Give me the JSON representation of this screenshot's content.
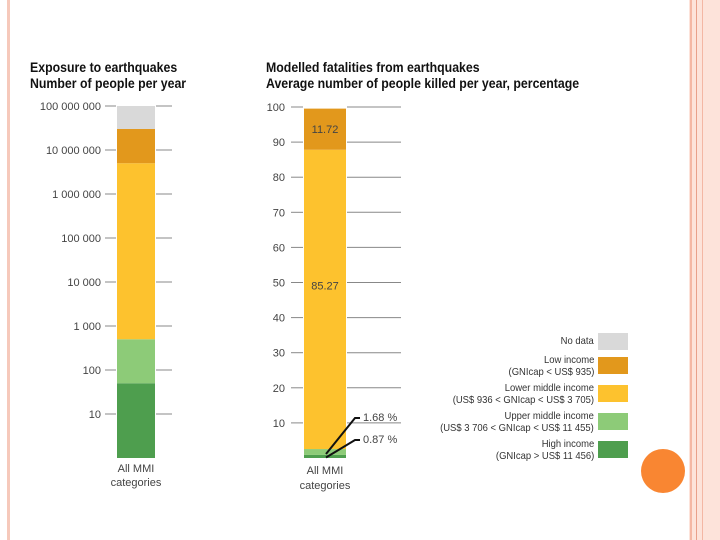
{
  "colors": {
    "no_data": "#d9d9d9",
    "low": "#e2981c",
    "lower_middle": "#fdc22e",
    "upper_middle": "#8dcb78",
    "high": "#4e9e4e",
    "accent_circle": "#f98632",
    "border": "#f6c9bb"
  },
  "chart_data": [
    {
      "type": "bar",
      "stacked": true,
      "title": "Exposure to earthquakes",
      "subtitle": "Number of people per year",
      "yscale": "log",
      "ylim": [
        1,
        100000000
      ],
      "yticks": [
        100000000,
        10000000,
        1000000,
        100000,
        10000,
        1000,
        100,
        10
      ],
      "ytick_labels": [
        "100 000 000",
        "10 000 000",
        "1 000 000",
        "100 000",
        "10 000",
        "1 000",
        "100",
        "10"
      ],
      "categories": [
        "All MMI categories"
      ],
      "category_lines": [
        "All MMI",
        "categories"
      ],
      "series": [
        {
          "name": "High income",
          "top": 50
        },
        {
          "name": "Upper middle income",
          "top": 500
        },
        {
          "name": "Lower middle income",
          "top": 5000000
        },
        {
          "name": "Low income",
          "top": 30000000
        },
        {
          "name": "No data",
          "top": 100000000
        }
      ]
    },
    {
      "type": "bar",
      "stacked": true,
      "title": "Modelled fatalities from earthquakes",
      "subtitle": "Average number of people killed per year, percentage",
      "ylim": [
        0,
        100
      ],
      "yticks": [
        100,
        90,
        80,
        70,
        60,
        50,
        40,
        30,
        20,
        10
      ],
      "ytick_labels": [
        "100",
        "90",
        "80",
        "70",
        "60",
        "50",
        "40",
        "30",
        "20",
        "10"
      ],
      "categories": [
        "All MMI categories"
      ],
      "category_lines": [
        "All MMI",
        "categories"
      ],
      "series": [
        {
          "name": "High income",
          "value": 0.87,
          "label": "0.87 %"
        },
        {
          "name": "Upper middle income",
          "value": 1.68,
          "label": "1.68 %"
        },
        {
          "name": "Lower middle income",
          "value": 85.27,
          "label": "85.27"
        },
        {
          "name": "Low income",
          "value": 11.72,
          "label": "11.72"
        },
        {
          "name": "No data",
          "value": 0.46
        }
      ]
    }
  ],
  "legend": [
    {
      "key": "no_data",
      "line1": "No data",
      "line2": ""
    },
    {
      "key": "low",
      "line1": "Low income",
      "line2": "(GNIcap < US$ 935)"
    },
    {
      "key": "lower_middle",
      "line1": "Lower middle income",
      "line2": "(US$ 936 < GNIcap < US$ 3 705)"
    },
    {
      "key": "upper_middle",
      "line1": "Upper middle income",
      "line2": "(US$ 3 706 < GNIcap < US$ 11 455)"
    },
    {
      "key": "high",
      "line1": "High income",
      "line2": "(GNIcap > US$ 11 456)"
    }
  ]
}
